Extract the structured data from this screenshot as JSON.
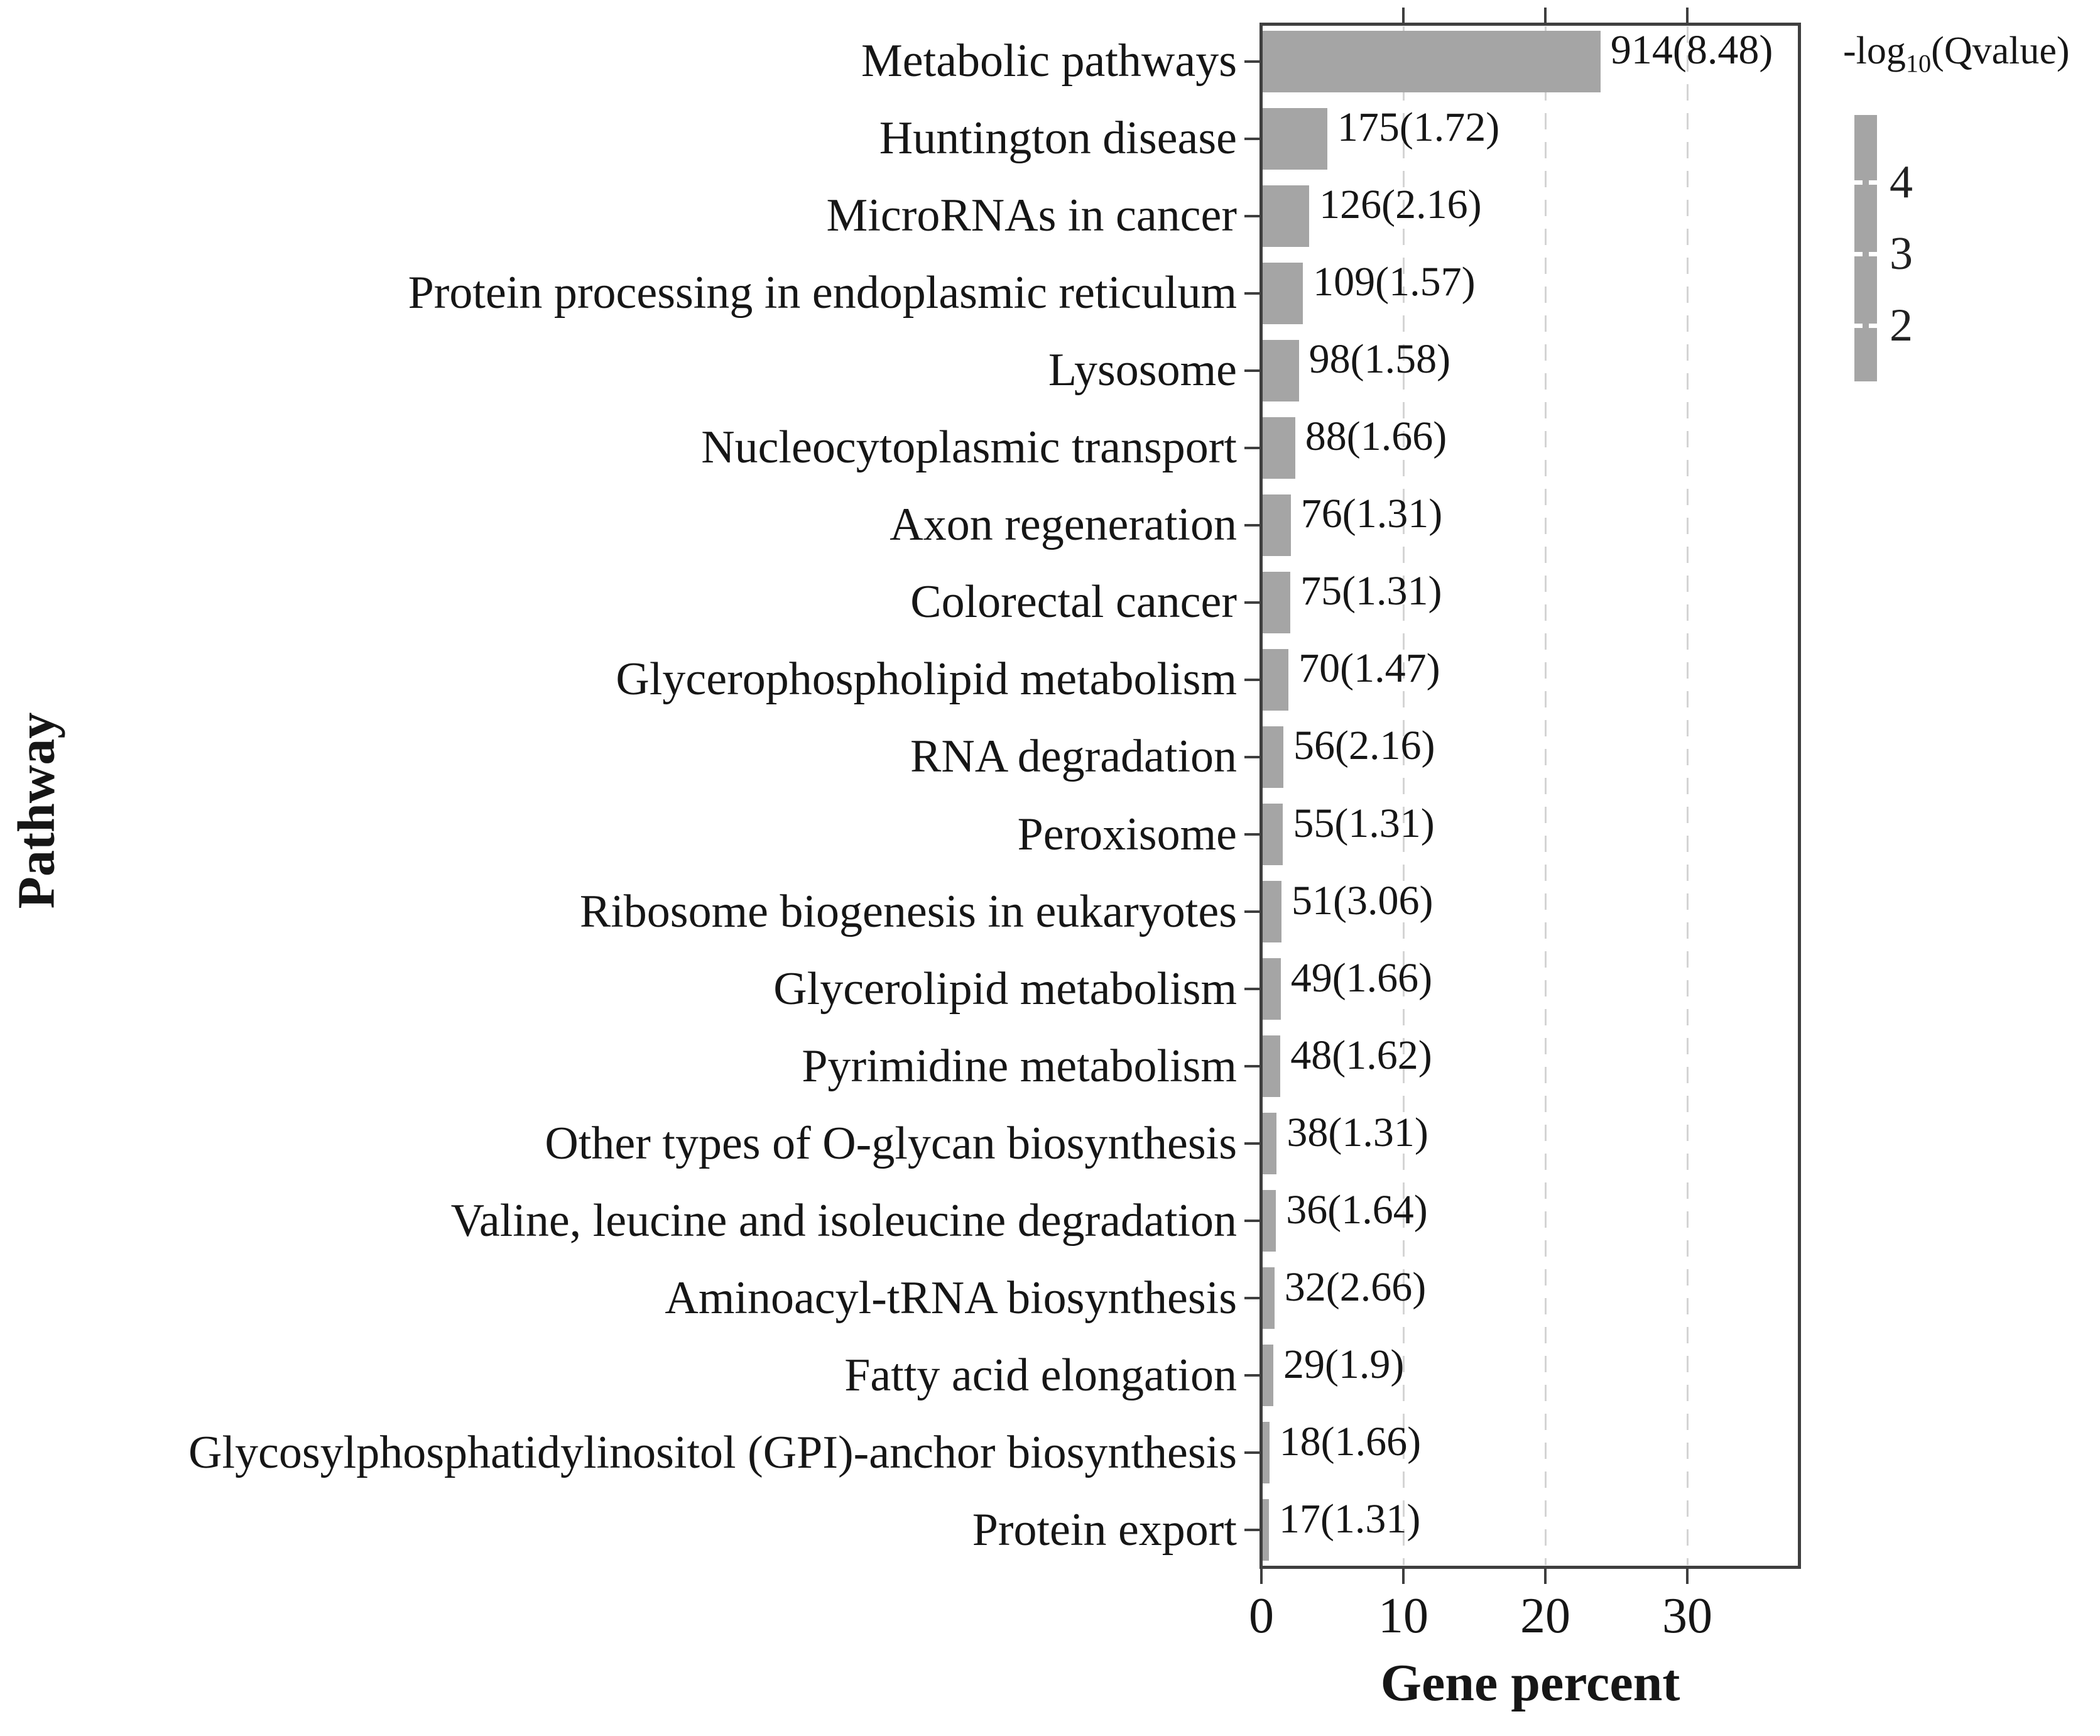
{
  "chart_data": {
    "type": "bar",
    "orientation": "horizontal",
    "title": "",
    "xlabel": "Gene percent",
    "ylabel": "Pathway",
    "xlim": [
      0,
      38
    ],
    "xticks": [
      0,
      10,
      20,
      30
    ],
    "grid": "vertical-dashed",
    "bar_color": "#a5a5a5",
    "categories": [
      "Metabolic pathways",
      "Huntington disease",
      "MicroRNAs in cancer",
      "Protein processing in endoplasmic reticulum",
      "Lysosome",
      "Nucleocytoplasmic transport",
      "Axon regeneration",
      "Colorectal cancer",
      "Glycerophospholipid metabolism",
      "RNA degradation",
      "Peroxisome",
      "Ribosome biogenesis in eukaryotes",
      "Glycerolipid metabolism",
      "Pyrimidine metabolism",
      "Other types of O-glycan biosynthesis",
      "Valine, leucine and isoleucine degradation",
      "Aminoacyl-tRNA biosynthesis",
      "Fatty acid elongation",
      "Glycosylphosphatidylinositol (GPI)-anchor biosynthesis",
      "Protein export"
    ],
    "gene_counts": [
      914,
      175,
      126,
      109,
      98,
      88,
      76,
      75,
      70,
      56,
      55,
      51,
      49,
      48,
      38,
      36,
      32,
      29,
      18,
      17
    ],
    "neg_log10_qvalue": [
      8.48,
      1.72,
      2.16,
      1.57,
      1.58,
      1.66,
      1.31,
      1.31,
      1.47,
      2.16,
      1.31,
      3.06,
      1.66,
      1.62,
      1.31,
      1.64,
      2.66,
      1.9,
      1.66,
      1.31
    ],
    "bar_labels": [
      "914(8.48)",
      "175(1.72)",
      "126(2.16)",
      "109(1.57)",
      "98(1.58)",
      "88(1.66)",
      "76(1.31)",
      "75(1.31)",
      "70(1.47)",
      "56(2.16)",
      "55(1.31)",
      "51(3.06)",
      "49(1.66)",
      "48(1.62)",
      "38(1.31)",
      "36(1.64)",
      "32(2.66)",
      "29(1.9)",
      "18(1.66)",
      "17(1.31)"
    ],
    "gene_percent_est": [
      23.8,
      4.55,
      3.28,
      2.84,
      2.55,
      2.29,
      1.98,
      1.95,
      1.82,
      1.46,
      1.43,
      1.33,
      1.27,
      1.25,
      0.99,
      0.94,
      0.83,
      0.75,
      0.47,
      0.44
    ],
    "legend": {
      "title": "-log10(Qvalue)",
      "title_prefix": "-log",
      "title_sub": "10",
      "title_suffix": "(Qvalue)",
      "ticks": [
        "4",
        "3",
        "2"
      ],
      "colorbar_color": "#a5a5a5",
      "position": "right"
    }
  },
  "colors": {
    "bar": "#a5a5a5",
    "frame": "#3f3f3f",
    "gridline": "#d4d4d4",
    "text": "#161616",
    "background": "#ffffff"
  }
}
